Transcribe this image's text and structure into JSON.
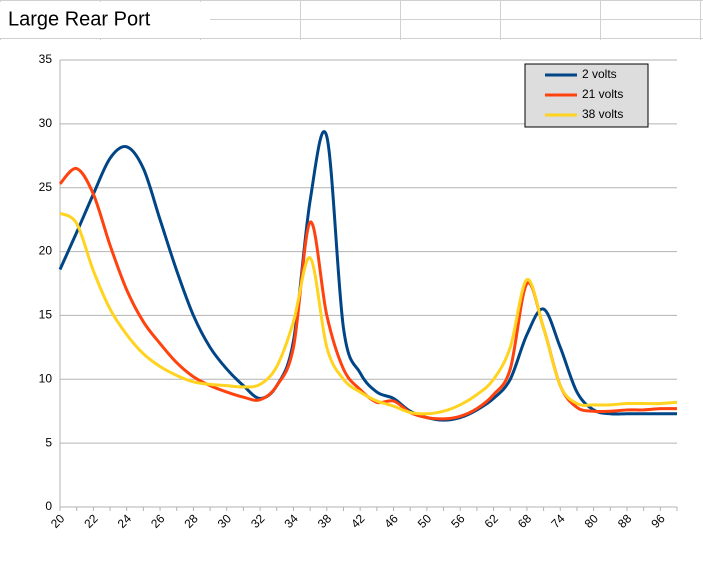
{
  "chart_data": {
    "type": "line",
    "title": "Large Rear Port",
    "categories": [
      "20",
      null,
      "22",
      null,
      "24",
      null,
      "26",
      null,
      "28",
      null,
      "30",
      null,
      "32",
      null,
      "34",
      null,
      "38",
      null,
      "42",
      null,
      "46",
      null,
      "50",
      null,
      "56",
      null,
      "62",
      null,
      "68",
      null,
      "74",
      null,
      "80",
      null,
      "88",
      null,
      "96",
      null
    ],
    "series": [
      {
        "name": "2 volts",
        "color": "#004586",
        "values": [
          18.6,
          21.5,
          24.5,
          27.3,
          28.2,
          26.5,
          22.5,
          18.5,
          15,
          12.5,
          10.8,
          9.5,
          8.5,
          9.5,
          13,
          24,
          29,
          14,
          10.5,
          9,
          8.5,
          7.5,
          7.0,
          6.8,
          7.0,
          7.6,
          8.5,
          10,
          13.5,
          15.5,
          12.5,
          9,
          7.6,
          7.3,
          7.3,
          7.3,
          7.3,
          7.3
        ]
      },
      {
        "name": "21 volts",
        "color": "#ff420e",
        "values": [
          25.3,
          26.5,
          24.5,
          20.5,
          17,
          14.5,
          12.8,
          11.3,
          10.2,
          9.5,
          9,
          8.6,
          8.4,
          9.5,
          12.5,
          22.3,
          15,
          10.8,
          9.2,
          8.2,
          8.3,
          7.4,
          7.0,
          6.9,
          7.1,
          7.7,
          8.8,
          10.8,
          17.5,
          14,
          9.5,
          7.8,
          7.5,
          7.5,
          7.6,
          7.6,
          7.7,
          7.7
        ]
      },
      {
        "name": "38 volts",
        "color": "#ffd320",
        "values": [
          23,
          22.2,
          18.5,
          15.5,
          13.5,
          12,
          11,
          10.3,
          9.8,
          9.6,
          9.5,
          9.4,
          9.6,
          11,
          14.5,
          19.5,
          12.5,
          10,
          9,
          8.3,
          7.9,
          7.4,
          7.3,
          7.5,
          8.0,
          8.8,
          10,
          12.5,
          17.8,
          14,
          9.5,
          8.1,
          8.0,
          8.0,
          8.1,
          8.1,
          8.1,
          8.2
        ]
      }
    ],
    "ylim": [
      0,
      35
    ],
    "yticks": [
      0,
      5,
      10,
      15,
      20,
      25,
      30,
      35
    ],
    "grid": true,
    "legend": "top-right"
  }
}
